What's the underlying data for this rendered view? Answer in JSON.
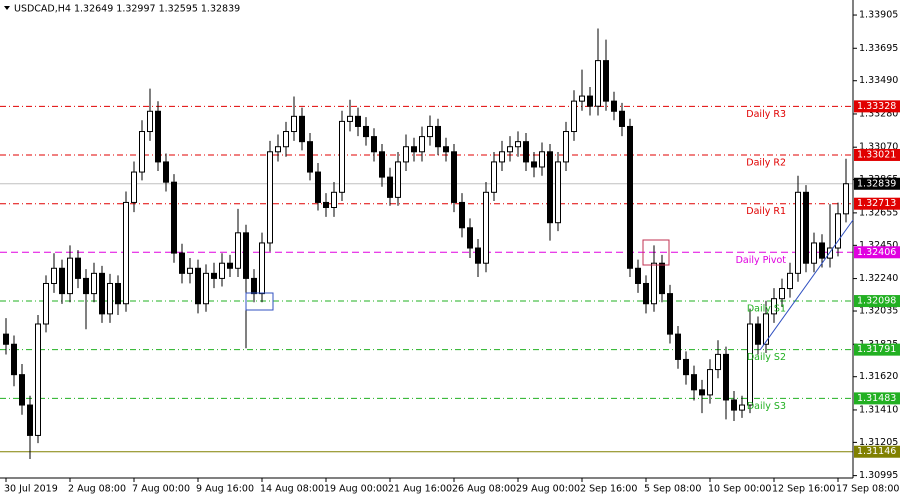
{
  "chart_data": {
    "type": "candlestick",
    "title": "USDCAD,H4  1.32649 1.32997 1.32595 1.32839",
    "categories": [
      "30 Jul 2019",
      null,
      null,
      null,
      null,
      null,
      null,
      null,
      "2 Aug 08:00",
      null,
      null,
      null,
      null,
      null,
      null,
      null,
      "7 Aug 00:00",
      null,
      null,
      null,
      null,
      null,
      null,
      null,
      "9 Aug 16:00",
      null,
      null,
      null,
      null,
      null,
      null,
      null,
      "14 Aug 08:00",
      null,
      null,
      null,
      null,
      null,
      null,
      null,
      "19 Aug 00:00",
      null,
      null,
      null,
      null,
      null,
      null,
      null,
      "21 Aug 16:00",
      null,
      null,
      null,
      null,
      null,
      null,
      null,
      "26 Aug 08:00",
      null,
      null,
      null,
      null,
      null,
      null,
      null,
      "29 Aug 00:00",
      null,
      null,
      null,
      null,
      null,
      null,
      null,
      "2 Sep 16:00",
      null,
      null,
      null,
      null,
      null,
      null,
      null,
      "5 Sep 08:00",
      null,
      null,
      null,
      null,
      null,
      null,
      null,
      "10 Sep 00:00",
      null,
      null,
      null,
      null,
      null,
      null,
      null,
      "12 Sep 16:00",
      null,
      null,
      null,
      null,
      null,
      null,
      null,
      "17 Sep 08:00",
      null
    ],
    "open": [
      1.31889,
      1.31825,
      1.31633,
      1.31441,
      1.31249,
      1.31953,
      1.32209,
      1.32305,
      1.32145,
      1.32369,
      1.32241,
      1.32145,
      1.32273,
      1.32017,
      1.32209,
      1.32081,
      1.32721,
      1.32913,
      1.33169,
      1.33297,
      1.32977,
      1.32849,
      1.32401,
      1.32273,
      1.32305,
      1.32081,
      1.32273,
      1.32241,
      1.32337,
      1.32305,
      1.32529,
      1.32241,
      1.32145,
      1.32465,
      1.33041,
      1.33073,
      1.33169,
      1.33265,
      1.33105,
      1.32913,
      1.32721,
      1.32689,
      1.32785,
      1.33233,
      1.33265,
      1.33201,
      1.33137,
      1.33041,
      1.32881,
      1.32753,
      1.32977,
      1.33073,
      1.33041,
      1.33137,
      1.33201,
      1.33073,
      1.33041,
      1.32721,
      1.32561,
      1.32433,
      1.32337,
      1.32785,
      1.32977,
      1.33041,
      1.33073,
      1.33105,
      1.32977,
      1.32945,
      1.33041,
      1.32593,
      1.32977,
      1.33169,
      1.33361,
      1.33393,
      1.33329,
      1.33617,
      1.33361,
      1.33297,
      1.33201,
      1.32305,
      1.32209,
      1.32081,
      1.32337,
      1.32145,
      1.31889,
      1.31729,
      1.31633,
      1.31537,
      1.31505,
      1.31665,
      1.31761,
      1.31473,
      1.31409,
      1.31441,
      1.31953,
      1.31825,
      1.32017,
      1.32113,
      1.32177,
      1.32273,
      1.32785,
      1.32337,
      1.32465,
      1.32369,
      1.32433,
      1.32649
    ],
    "high": [
      1.3199,
      1.3188,
      1.317,
      1.315,
      1.3201,
      1.3226,
      1.324,
      1.3236,
      1.3245,
      1.3242,
      1.323,
      1.3234,
      1.3232,
      1.3227,
      1.3226,
      1.3279,
      1.3298,
      1.3324,
      1.3344,
      1.3336,
      1.3303,
      1.329,
      1.3246,
      1.3237,
      1.3236,
      1.3233,
      1.3234,
      1.324,
      1.3239,
      1.3268,
      1.3258,
      1.323,
      1.3253,
      1.3311,
      1.3315,
      1.3323,
      1.3339,
      1.3332,
      1.3316,
      1.3297,
      1.3278,
      1.3285,
      1.333,
      1.3337,
      1.3332,
      1.3326,
      1.3319,
      1.3309,
      1.3294,
      1.3304,
      1.3315,
      1.3313,
      1.332,
      1.3327,
      1.3325,
      1.3313,
      1.3309,
      1.3278,
      1.3262,
      1.3249,
      1.3285,
      1.3304,
      1.3311,
      1.3314,
      1.3317,
      1.3316,
      1.3304,
      1.331,
      1.3309,
      1.3304,
      1.3323,
      1.3343,
      1.3356,
      1.3345,
      1.3382,
      1.3375,
      1.3342,
      1.3335,
      1.3325,
      1.3236,
      1.3226,
      1.3245,
      1.3239,
      1.322,
      1.3194,
      1.3178,
      1.3169,
      1.316,
      1.3173,
      1.3185,
      1.3181,
      1.3153,
      1.315,
      1.3205,
      1.32,
      1.321,
      1.3218,
      1.3224,
      1.3234,
      1.3289,
      1.3283,
      1.3253,
      1.3252,
      1.3271,
      1.3272,
      1.32997
    ],
    "low": [
      1.3176,
      1.3156,
      1.3138,
      1.311,
      1.312,
      1.319,
      1.3215,
      1.3208,
      1.3209,
      1.3218,
      1.3192,
      1.3209,
      1.3196,
      1.3196,
      1.3201,
      1.3203,
      1.3266,
      1.3286,
      1.3311,
      1.3292,
      1.3279,
      1.3234,
      1.3221,
      1.3221,
      1.3202,
      1.3203,
      1.3218,
      1.3219,
      1.3225,
      1.3225,
      1.318,
      1.3209,
      1.3209,
      1.3241,
      1.3298,
      1.3301,
      1.3311,
      1.3305,
      1.3286,
      1.3267,
      1.3263,
      1.3263,
      1.3273,
      1.3317,
      1.3314,
      1.3308,
      1.3298,
      1.3282,
      1.327,
      1.327,
      1.3292,
      1.3298,
      1.3298,
      1.3308,
      1.3302,
      1.3298,
      1.3266,
      1.325,
      1.3237,
      1.3225,
      1.3228,
      1.3273,
      1.3292,
      1.3298,
      1.3301,
      1.3292,
      1.3288,
      1.3289,
      1.3248,
      1.3254,
      1.3292,
      1.3311,
      1.333,
      1.3327,
      1.3327,
      1.333,
      1.3324,
      1.3314,
      1.3225,
      1.3215,
      1.3202,
      1.3203,
      1.3209,
      1.3183,
      1.3167,
      1.3157,
      1.3147,
      1.3139,
      1.3145,
      1.3161,
      1.3135,
      1.3134,
      1.3136,
      1.3139,
      1.3176,
      1.3177,
      1.3196,
      1.3206,
      1.3212,
      1.3222,
      1.3228,
      1.3228,
      1.3231,
      1.3231,
      1.3238,
      1.32595
    ],
    "close": [
      1.31825,
      1.31633,
      1.31441,
      1.31249,
      1.31953,
      1.32209,
      1.32305,
      1.32145,
      1.32369,
      1.32241,
      1.32145,
      1.32273,
      1.32017,
      1.32209,
      1.32081,
      1.32721,
      1.32913,
      1.33169,
      1.33297,
      1.32977,
      1.32849,
      1.32401,
      1.32273,
      1.32305,
      1.32081,
      1.32273,
      1.32241,
      1.32337,
      1.32305,
      1.32529,
      1.32241,
      1.32145,
      1.32465,
      1.33041,
      1.33073,
      1.33169,
      1.33265,
      1.33105,
      1.32913,
      1.32721,
      1.32689,
      1.32785,
      1.33233,
      1.33265,
      1.33201,
      1.33137,
      1.33041,
      1.32881,
      1.32753,
      1.32977,
      1.33073,
      1.33041,
      1.33137,
      1.33201,
      1.33073,
      1.33041,
      1.32721,
      1.32561,
      1.32433,
      1.32337,
      1.32785,
      1.32977,
      1.33041,
      1.33073,
      1.33105,
      1.32977,
      1.32945,
      1.33041,
      1.32593,
      1.32977,
      1.33169,
      1.33361,
      1.33393,
      1.33329,
      1.33617,
      1.33361,
      1.33297,
      1.33201,
      1.32305,
      1.32209,
      1.32081,
      1.32337,
      1.32145,
      1.31889,
      1.31729,
      1.31633,
      1.31537,
      1.31505,
      1.31665,
      1.31761,
      1.31473,
      1.31409,
      1.31441,
      1.31953,
      1.31825,
      1.32017,
      1.32113,
      1.32177,
      1.32273,
      1.32785,
      1.32337,
      1.32465,
      1.32369,
      1.32433,
      1.32649,
      1.32839
    ],
    "ylim": [
      1.3098,
      1.34
    ],
    "yticks": [
      1.33905,
      1.33695,
      {
        "value": 1.3349,
        "label": "1.33490"
      },
      {
        "value": 1.3328,
        "label": "1.33280"
      },
      {
        "value": 1.3307,
        "label": "1.33070"
      },
      1.32865,
      1.32655,
      {
        "value": 1.3245,
        "label": "1.32450"
      },
      {
        "value": 1.3224,
        "label": "1.32240"
      },
      1.32035,
      1.31825,
      {
        "value": 1.3162,
        "label": "1.31620"
      },
      {
        "value": 1.3141,
        "label": "1.31410"
      },
      1.31205,
      1.30995
    ],
    "levels": [
      {
        "name": "Daily R3",
        "value": 1.33328,
        "color": "#e00000",
        "style": "dashdot"
      },
      {
        "name": "Daily R2",
        "value": 1.33021,
        "color": "#e00000",
        "style": "dashdot"
      },
      {
        "name": "Daily R1",
        "value": 1.32713,
        "color": "#e00000",
        "style": "dashdot"
      },
      {
        "name": "Daily Pivot",
        "value": 1.32406,
        "color": "#e000e0",
        "style": "dash"
      },
      {
        "name": "Daily S1",
        "value": 1.32098,
        "color": "#22b022",
        "style": "dashdot"
      },
      {
        "name": "Daily S2",
        "value": 1.31791,
        "color": "#22b022",
        "style": "dashdot"
      },
      {
        "name": "Daily S3",
        "value": 1.31483,
        "color": "#22b022",
        "style": "dashdot"
      },
      {
        "value": 1.31146,
        "color": "#808000",
        "style": "solid"
      }
    ],
    "bull_color": "#ffffff",
    "bear_color": "#000000",
    "last_price_color": "#000000"
  }
}
